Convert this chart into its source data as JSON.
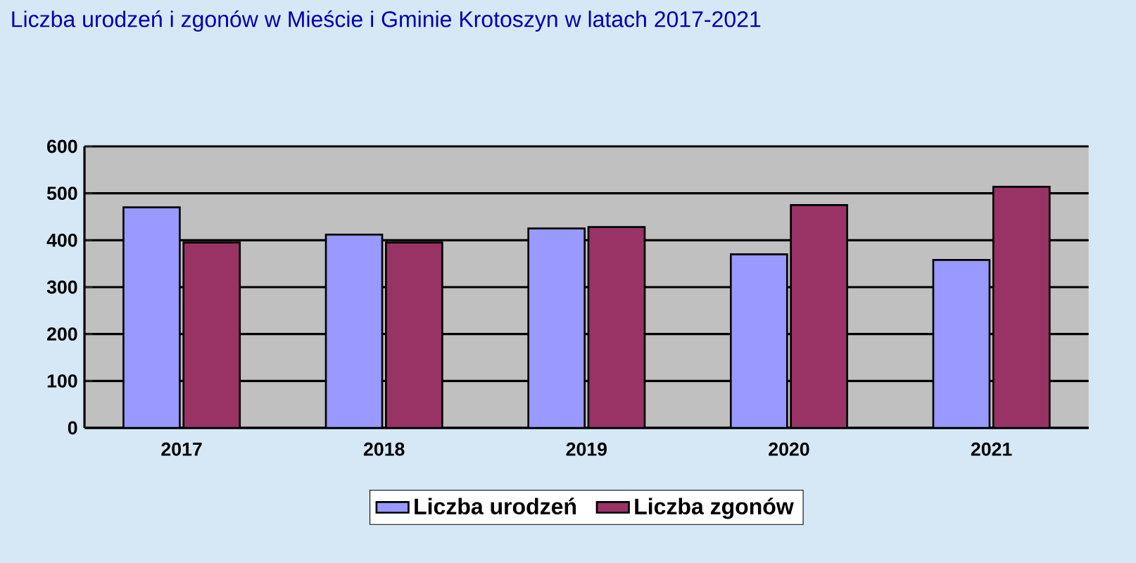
{
  "chart_data": {
    "type": "bar",
    "title": "Liczba urodzeń i zgonów w Mieście i Gminie Krotoszyn w latach 2017-2021",
    "categories": [
      "2017",
      "2018",
      "2019",
      "2020",
      "2021"
    ],
    "series": [
      {
        "name": "Liczba urodzeń",
        "color": "#9999ff",
        "values": [
          470,
          412,
          425,
          370,
          358
        ]
      },
      {
        "name": "Liczba zgonów",
        "color": "#993366",
        "values": [
          395,
          395,
          428,
          475,
          514
        ]
      }
    ],
    "ylim": [
      0,
      600
    ],
    "yticks": [
      0,
      100,
      200,
      300,
      400,
      500,
      600
    ],
    "grid": "y",
    "legend": "bottom"
  }
}
